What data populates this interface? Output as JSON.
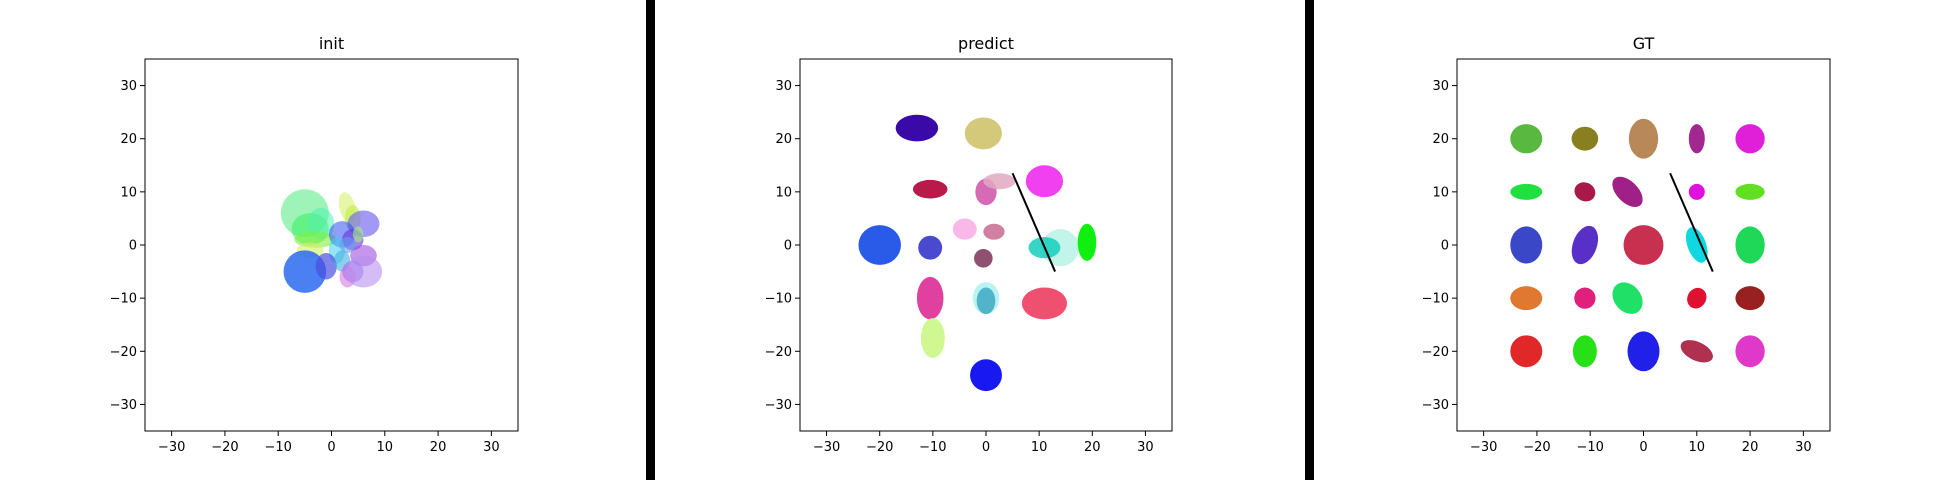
{
  "colors": {
    "axes": "#000000",
    "background": "#ffffff",
    "divider": "#000000"
  },
  "chart_data": [
    {
      "type": "scatter",
      "title": "init",
      "xlim": [
        -35,
        35
      ],
      "ylim": [
        -35,
        35
      ],
      "xticks": [
        -30,
        -20,
        -10,
        0,
        10,
        20,
        30
      ],
      "yticks": [
        -30,
        -20,
        -10,
        0,
        10,
        20,
        30
      ],
      "grid": false,
      "ellipses": [
        {
          "x": -5,
          "y": 6,
          "w": 9,
          "h": 9,
          "angle": 0,
          "color": "#7ef0a0",
          "alpha": 0.75
        },
        {
          "x": -4,
          "y": 3,
          "w": 7,
          "h": 6,
          "angle": 0,
          "color": "#40f060",
          "alpha": 0.6
        },
        {
          "x": 3,
          "y": 7,
          "w": 3,
          "h": 6,
          "angle": 15,
          "color": "#d8f070",
          "alpha": 0.6
        },
        {
          "x": 4,
          "y": 5,
          "w": 3,
          "h": 5,
          "angle": 0,
          "color": "#c0f040",
          "alpha": 0.6
        },
        {
          "x": -2,
          "y": 4,
          "w": 5,
          "h": 6,
          "angle": 0,
          "color": "#50f0b0",
          "alpha": 0.55
        },
        {
          "x": 6,
          "y": 4,
          "w": 6,
          "h": 5,
          "angle": 0,
          "color": "#7a6ef0",
          "alpha": 0.7
        },
        {
          "x": -3,
          "y": 1,
          "w": 8,
          "h": 3,
          "angle": 0,
          "color": "#80f040",
          "alpha": 0.6
        },
        {
          "x": 2,
          "y": 2,
          "w": 5,
          "h": 5,
          "angle": 0,
          "color": "#3050f0",
          "alpha": 0.55
        },
        {
          "x": 4,
          "y": 1,
          "w": 4,
          "h": 4,
          "angle": 0,
          "color": "#6a30e0",
          "alpha": 0.6
        },
        {
          "x": -4,
          "y": -1,
          "w": 5,
          "h": 3,
          "angle": 0,
          "color": "#d0f060",
          "alpha": 0.6
        },
        {
          "x": 1,
          "y": -1,
          "w": 3,
          "h": 5,
          "angle": 0,
          "color": "#40d0f0",
          "alpha": 0.55
        },
        {
          "x": 6,
          "y": -2,
          "w": 5,
          "h": 4,
          "angle": 0,
          "color": "#a050e0",
          "alpha": 0.6
        },
        {
          "x": -5,
          "y": -5,
          "w": 8,
          "h": 8,
          "angle": 0,
          "color": "#2a6af0",
          "alpha": 0.85
        },
        {
          "x": -1,
          "y": -4,
          "w": 4,
          "h": 5,
          "angle": 0,
          "color": "#4a50e0",
          "alpha": 0.7
        },
        {
          "x": 2,
          "y": -3,
          "w": 3,
          "h": 4,
          "angle": 0,
          "color": "#40b0e0",
          "alpha": 0.6
        },
        {
          "x": 4,
          "y": -5,
          "w": 4,
          "h": 4,
          "angle": 0,
          "color": "#9070f0",
          "alpha": 0.6
        },
        {
          "x": 3,
          "y": -6,
          "w": 3,
          "h": 4,
          "angle": 0,
          "color": "#d070e0",
          "alpha": 0.55
        },
        {
          "x": 6,
          "y": -5,
          "w": 7,
          "h": 6,
          "angle": 0,
          "color": "#b890f0",
          "alpha": 0.6
        },
        {
          "x": 3,
          "y": 0,
          "w": 3,
          "h": 3,
          "angle": 0,
          "color": "#60a0f0",
          "alpha": 0.6
        },
        {
          "x": 5,
          "y": 2,
          "w": 2,
          "h": 3,
          "angle": 0,
          "color": "#a0f080",
          "alpha": 0.6
        }
      ]
    },
    {
      "type": "scatter",
      "title": "predict",
      "xlim": [
        -35,
        35
      ],
      "ylim": [
        -35,
        35
      ],
      "xticks": [
        -30,
        -20,
        -10,
        0,
        10,
        20,
        30
      ],
      "yticks": [
        -30,
        -20,
        -10,
        0,
        10,
        20,
        30
      ],
      "grid": false,
      "line": {
        "x1": 5,
        "y1": 13.5,
        "x2": 13,
        "y2": -5,
        "color": "#000000"
      },
      "ellipses": [
        {
          "x": -13,
          "y": 22,
          "w": 8,
          "h": 5,
          "angle": 0,
          "color": "#3a0aa8",
          "alpha": 1
        },
        {
          "x": -0.5,
          "y": 21,
          "w": 7,
          "h": 6,
          "angle": 0,
          "color": "#d4c87a",
          "alpha": 1
        },
        {
          "x": -10.5,
          "y": 10.5,
          "w": 6.5,
          "h": 3.5,
          "angle": 0,
          "color": "#b81a4a",
          "alpha": 1
        },
        {
          "x": 0,
          "y": 10,
          "w": 4,
          "h": 5,
          "angle": 0,
          "color": "#d050a8",
          "alpha": 0.85
        },
        {
          "x": 2.5,
          "y": 12,
          "w": 6,
          "h": 3,
          "angle": 0,
          "color": "#e0a8c0",
          "alpha": 0.85
        },
        {
          "x": 11,
          "y": 12,
          "w": 7,
          "h": 6,
          "angle": 0,
          "color": "#f040f0",
          "alpha": 1
        },
        {
          "x": -20,
          "y": 0,
          "w": 8,
          "h": 7.5,
          "angle": 0,
          "color": "#2a5ae8",
          "alpha": 1
        },
        {
          "x": -10.5,
          "y": -0.5,
          "w": 4.5,
          "h": 4.5,
          "angle": 0,
          "color": "#4a4ad0",
          "alpha": 1
        },
        {
          "x": -4,
          "y": 3,
          "w": 4.5,
          "h": 4,
          "angle": 0,
          "color": "#f8b8e8",
          "alpha": 1
        },
        {
          "x": 1.5,
          "y": 2.5,
          "w": 4,
          "h": 3,
          "angle": 0,
          "color": "#d080a0",
          "alpha": 1
        },
        {
          "x": -0.5,
          "y": -2.5,
          "w": 3.5,
          "h": 3.5,
          "angle": 0,
          "color": "#905070",
          "alpha": 1
        },
        {
          "x": 14,
          "y": -0.5,
          "w": 7,
          "h": 7,
          "angle": 0,
          "color": "#a8f0e0",
          "alpha": 0.7
        },
        {
          "x": 11,
          "y": -0.5,
          "w": 6,
          "h": 4,
          "angle": 0,
          "color": "#20d0c0",
          "alpha": 0.9
        },
        {
          "x": 19,
          "y": 0.5,
          "w": 3.5,
          "h": 7,
          "angle": 0,
          "color": "#10f010",
          "alpha": 1
        },
        {
          "x": -10.5,
          "y": -10,
          "w": 5,
          "h": 8,
          "angle": 0,
          "color": "#e040a0",
          "alpha": 1
        },
        {
          "x": 0,
          "y": -10,
          "w": 5,
          "h": 6,
          "angle": 0,
          "color": "#a8f0f0",
          "alpha": 0.8
        },
        {
          "x": 0,
          "y": -10.5,
          "w": 3.5,
          "h": 5,
          "angle": 0,
          "color": "#40a8c0",
          "alpha": 0.85
        },
        {
          "x": 11,
          "y": -11,
          "w": 8.5,
          "h": 6,
          "angle": 0,
          "color": "#f05070",
          "alpha": 1
        },
        {
          "x": -10,
          "y": -17.5,
          "w": 4.5,
          "h": 7.5,
          "angle": 0,
          "color": "#d0f890",
          "alpha": 1
        },
        {
          "x": 0,
          "y": -24.5,
          "w": 6,
          "h": 6,
          "angle": 0,
          "color": "#1818f0",
          "alpha": 1
        }
      ]
    },
    {
      "type": "scatter",
      "title": "GT",
      "xlim": [
        -35,
        35
      ],
      "ylim": [
        -35,
        35
      ],
      "xticks": [
        -30,
        -20,
        -10,
        0,
        10,
        20,
        30
      ],
      "yticks": [
        -30,
        -20,
        -10,
        0,
        10,
        20,
        30
      ],
      "grid": false,
      "line": {
        "x1": 5,
        "y1": 13.5,
        "x2": 13,
        "y2": -5,
        "color": "#000000"
      },
      "ellipses": [
        {
          "x": -22,
          "y": 20,
          "w": 6,
          "h": 5.5,
          "angle": 0,
          "color": "#58b840",
          "alpha": 1
        },
        {
          "x": -11,
          "y": 20,
          "w": 5,
          "h": 4.5,
          "angle": 0,
          "color": "#888020",
          "alpha": 1
        },
        {
          "x": 0,
          "y": 20,
          "w": 5.5,
          "h": 7.5,
          "angle": 0,
          "color": "#b88858",
          "alpha": 1
        },
        {
          "x": 10,
          "y": 20,
          "w": 3,
          "h": 5.5,
          "angle": 0,
          "color": "#a02890",
          "alpha": 1
        },
        {
          "x": 20,
          "y": 20,
          "w": 5.5,
          "h": 5.5,
          "angle": 0,
          "color": "#e020d8",
          "alpha": 1
        },
        {
          "x": -22,
          "y": 10,
          "w": 6,
          "h": 3,
          "angle": 0,
          "color": "#20e040",
          "alpha": 1
        },
        {
          "x": -11,
          "y": 10,
          "w": 4,
          "h": 3.5,
          "angle": -25,
          "color": "#a81848",
          "alpha": 1
        },
        {
          "x": -3,
          "y": 10,
          "w": 4,
          "h": 7,
          "angle": 45,
          "color": "#a02088",
          "alpha": 1
        },
        {
          "x": 10,
          "y": 10,
          "w": 3,
          "h": 3,
          "angle": 0,
          "color": "#e010e0",
          "alpha": 1
        },
        {
          "x": 20,
          "y": 10,
          "w": 5.5,
          "h": 3,
          "angle": 0,
          "color": "#60e020",
          "alpha": 1
        },
        {
          "x": -22,
          "y": 0,
          "w": 6,
          "h": 7,
          "angle": 0,
          "color": "#3a48c8",
          "alpha": 1
        },
        {
          "x": -11,
          "y": 0,
          "w": 4.5,
          "h": 7.5,
          "angle": -20,
          "color": "#5830c8",
          "alpha": 1
        },
        {
          "x": 0,
          "y": 0,
          "w": 7.5,
          "h": 7.5,
          "angle": 0,
          "color": "#c83050",
          "alpha": 1
        },
        {
          "x": 10,
          "y": 0,
          "w": 3.5,
          "h": 7,
          "angle": 20,
          "color": "#10d8e0",
          "alpha": 1
        },
        {
          "x": 20,
          "y": 0,
          "w": 5.5,
          "h": 7,
          "angle": 0,
          "color": "#20d858",
          "alpha": 1
        },
        {
          "x": -22,
          "y": -10,
          "w": 6,
          "h": 4.5,
          "angle": 0,
          "color": "#e07830",
          "alpha": 1
        },
        {
          "x": -11,
          "y": -10,
          "w": 4,
          "h": 4,
          "angle": 0,
          "color": "#e0207a",
          "alpha": 1
        },
        {
          "x": -3,
          "y": -10,
          "w": 5,
          "h": 6.5,
          "angle": 40,
          "color": "#20e068",
          "alpha": 1
        },
        {
          "x": 10,
          "y": -10,
          "w": 3.5,
          "h": 4,
          "angle": -30,
          "color": "#e01030",
          "alpha": 1
        },
        {
          "x": 20,
          "y": -10,
          "w": 5.5,
          "h": 4.5,
          "angle": 0,
          "color": "#982020",
          "alpha": 1
        },
        {
          "x": -22,
          "y": -20,
          "w": 6,
          "h": 6,
          "angle": 0,
          "color": "#e02828",
          "alpha": 1
        },
        {
          "x": -11,
          "y": -20,
          "w": 4.5,
          "h": 6,
          "angle": 0,
          "color": "#28e018",
          "alpha": 1
        },
        {
          "x": 0,
          "y": -20,
          "w": 6,
          "h": 7.5,
          "angle": 0,
          "color": "#2020e8",
          "alpha": 1
        },
        {
          "x": 10,
          "y": -20,
          "w": 3.5,
          "h": 6.5,
          "angle": 65,
          "color": "#b03050",
          "alpha": 1
        },
        {
          "x": 20,
          "y": -20,
          "w": 5.5,
          "h": 6,
          "angle": 0,
          "color": "#e038c8",
          "alpha": 1
        }
      ]
    }
  ]
}
